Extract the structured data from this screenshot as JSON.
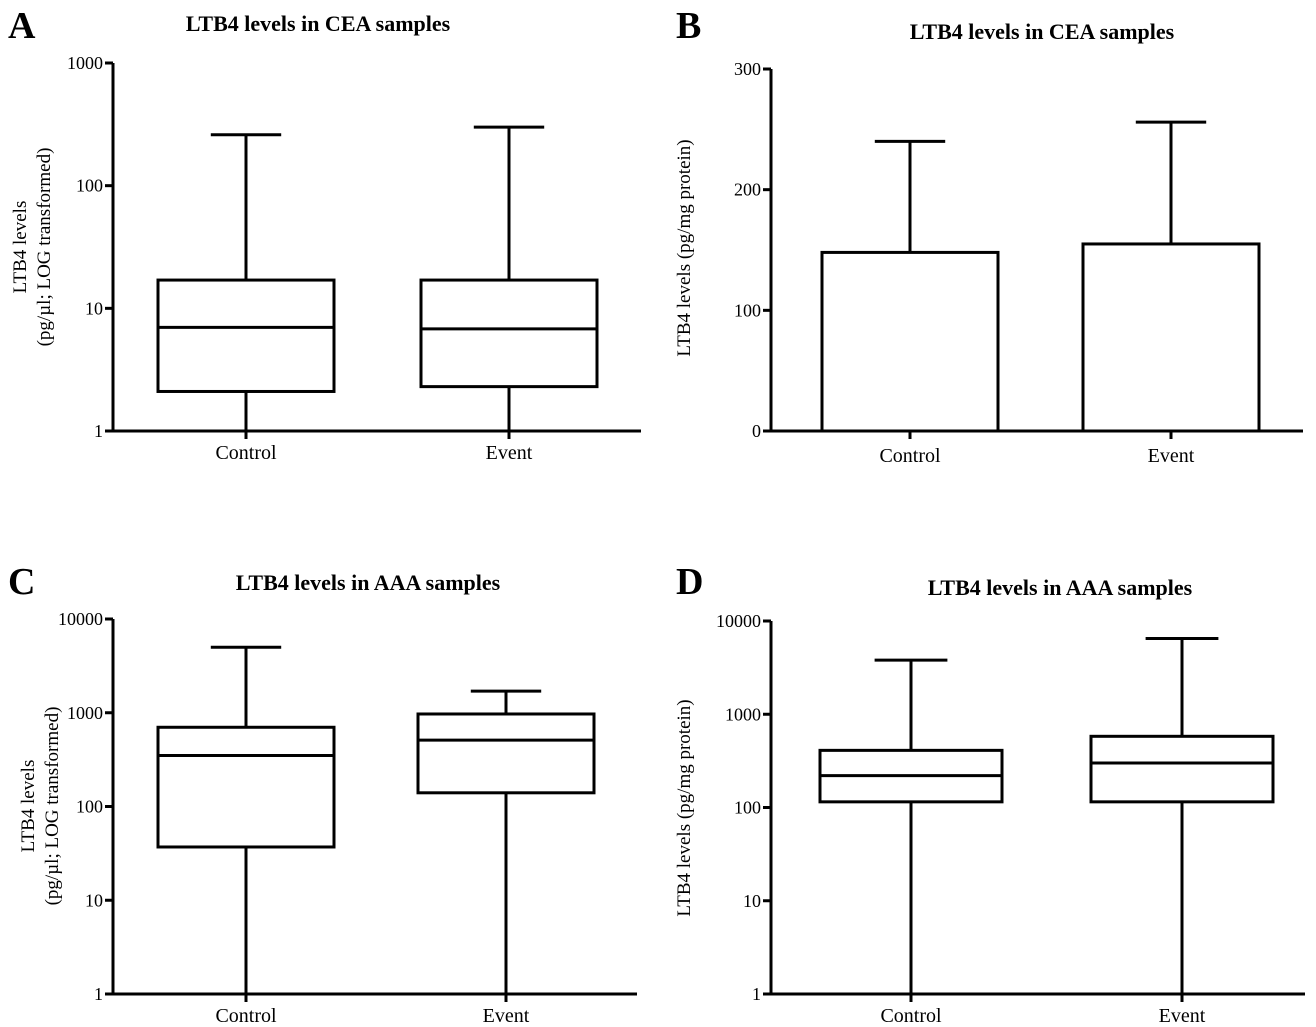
{
  "chart_data": [
    {
      "panel": "A",
      "type": "box",
      "title": "LTB4 levels in CEA samples",
      "ylabel": [
        "LTB4 levels",
        "(pg/µl; LOG transformed)"
      ],
      "yscale": "log",
      "ylim": [
        1,
        1000
      ],
      "yticks": [
        1,
        10,
        100,
        1000
      ],
      "yticklabels": [
        "1",
        "10",
        "100",
        "1000"
      ],
      "categories": [
        "Control",
        "Event"
      ],
      "boxes": [
        {
          "min": 1,
          "q1": 2.1,
          "median": 7.0,
          "q3": 17,
          "max": 260
        },
        {
          "min": 1,
          "q1": 2.3,
          "median": 6.8,
          "q3": 17,
          "max": 300
        }
      ]
    },
    {
      "panel": "B",
      "type": "bar",
      "title": "LTB4 levels in CEA samples",
      "ylabel": [
        "LTB4 levels (pg/mg protein)"
      ],
      "yscale": "linear",
      "ylim": [
        0,
        300
      ],
      "yticks": [
        0,
        100,
        200,
        300
      ],
      "yticklabels": [
        "0",
        "100",
        "200",
        "300"
      ],
      "categories": [
        "Control",
        "Event"
      ],
      "bars": [
        {
          "value": 148,
          "error_upper": 240
        },
        {
          "value": 155,
          "error_upper": 256
        }
      ]
    },
    {
      "panel": "C",
      "type": "box",
      "title": "LTB4 levels in AAA samples",
      "ylabel": [
        "LTB4 levels",
        "(pg/µl; LOG transformed)"
      ],
      "yscale": "log",
      "ylim": [
        1,
        10000
      ],
      "yticks": [
        1,
        10,
        100,
        1000,
        10000
      ],
      "yticklabels": [
        "1",
        "10",
        "100",
        "1000",
        "10000"
      ],
      "categories": [
        "Control",
        "Event"
      ],
      "boxes": [
        {
          "min": 1,
          "q1": 37,
          "median": 350,
          "q3": 700,
          "max": 5000
        },
        {
          "min": 1,
          "q1": 140,
          "median": 510,
          "q3": 970,
          "max": 1700
        }
      ]
    },
    {
      "panel": "D",
      "type": "box",
      "title": "LTB4 levels in AAA samples",
      "ylabel": [
        "LTB4 levels (pg/mg protein)"
      ],
      "yscale": "log",
      "ylim": [
        1,
        10000
      ],
      "yticks": [
        1,
        10,
        100,
        1000,
        10000
      ],
      "yticklabels": [
        "1",
        "10",
        "100",
        "1000",
        "10000"
      ],
      "categories": [
        "Control",
        "Event"
      ],
      "boxes": [
        {
          "min": 1,
          "q1": 115,
          "median": 220,
          "q3": 410,
          "max": 3800
        },
        {
          "min": 1,
          "q1": 115,
          "median": 300,
          "q3": 580,
          "max": 6500
        }
      ]
    }
  ]
}
